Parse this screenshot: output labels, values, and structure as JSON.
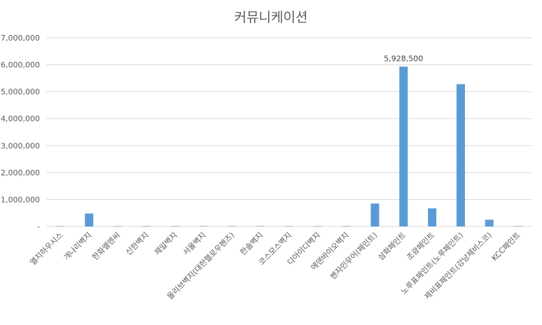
{
  "chart_data": {
    "type": "bar",
    "title": "커뮤니케이션",
    "categories": [
      "엘지하우시스",
      "개나리벽지",
      "한화엘엔씨",
      "신한벽지",
      "제일벽지",
      "서울벽지",
      "올리브벽지(대한헬로우펜즈)",
      "한솔벽지",
      "코스모스벽지",
      "디아이디벽지",
      "에덴바이오벽지",
      "벤자민무어(페인트)",
      "삼화페인트",
      "조광페인트",
      "노루표페인트(노루페인트)",
      "제비표페인트(강남제비스코)",
      "KCC페인트"
    ],
    "series": [
      {
        "values": [
          15000,
          480000,
          15000,
          15000,
          15000,
          15000,
          15000,
          15000,
          15000,
          15000,
          15000,
          850000,
          5928500,
          670000,
          5280000,
          250000,
          15000
        ],
        "color": "#5b9bd5"
      }
    ],
    "data_labels": [
      {
        "index": 12,
        "text": "5,928,500"
      }
    ],
    "y_ticks": [
      "-",
      "1,000,000",
      "2,000,000",
      "3,000,000",
      "4,000,000",
      "5,000,000",
      "6,000,000",
      "7,000,000"
    ],
    "ylim": [
      0,
      7000000
    ],
    "grid": true,
    "legend": "none",
    "colors": {
      "bar": "#5b9bd5",
      "grid": "#d9d9d9",
      "text": "#595959",
      "title": "#595959"
    }
  }
}
